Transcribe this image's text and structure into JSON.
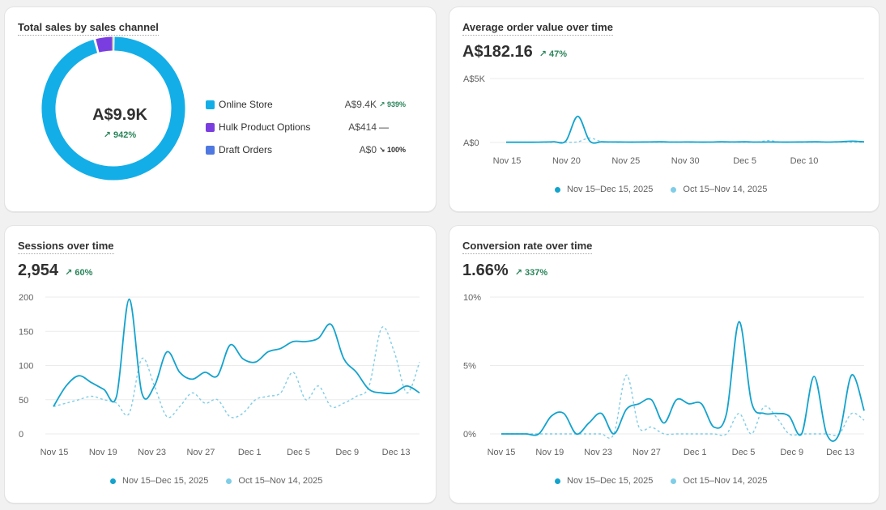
{
  "colors": {
    "primary": "#13a3cd",
    "previous": "#7fcde6",
    "positive": "#29845a",
    "grid": "#ebebeb",
    "axis": "#616161"
  },
  "legend": {
    "current": "Nov 15–Dec 15, 2025",
    "previous": "Oct 15–Nov 14, 2025"
  },
  "sales_by_channel": {
    "title": "Total sales by sales channel",
    "total": "A$9.9K",
    "total_change": "↗ 942%",
    "channels": [
      {
        "name": "Online Store",
        "value": "A$9.4K",
        "change": "↗ 939%",
        "color": "#13aee8",
        "amount": 9400
      },
      {
        "name": "Hulk Product Options",
        "value": "A$414",
        "change": "—",
        "color": "#7a3ee0",
        "amount": 414
      },
      {
        "name": "Draft Orders",
        "value": "A$0",
        "change": "↘ 100%",
        "color": "#4f78e0",
        "amount": 0
      }
    ]
  },
  "aov": {
    "title": "Average order value over time",
    "value": "A$182.16",
    "change": "↗ 47%"
  },
  "sessions": {
    "title": "Sessions over time",
    "value": "2,954",
    "change": "↗ 60%"
  },
  "conversion": {
    "title": "Conversion rate over time",
    "value": "1.66%",
    "change": "↗ 337%"
  },
  "chart_data": [
    {
      "type": "pie",
      "title": "Total sales by sales channel",
      "categories": [
        "Online Store",
        "Hulk Product Options",
        "Draft Orders"
      ],
      "values": [
        9400,
        414,
        0
      ]
    },
    {
      "type": "line",
      "title": "Average order value over time",
      "x_ticks": [
        "Nov 15",
        "Nov 20",
        "Nov 25",
        "Nov 30",
        "Dec 5",
        "Dec 10"
      ],
      "y_ticks": [
        "A$0",
        "A$5K"
      ],
      "ylim": [
        0,
        5000
      ],
      "grid": true,
      "series": [
        {
          "name": "Nov 15–Dec 15, 2025",
          "values": [
            20,
            20,
            20,
            30,
            60,
            120,
            2050,
            120,
            50,
            40,
            30,
            30,
            40,
            50,
            30,
            40,
            30,
            30,
            50,
            40,
            50,
            30,
            40,
            30,
            30,
            40,
            50,
            30,
            60,
            100,
            50
          ]
        },
        {
          "name": "Oct 15–Nov 14, 2025",
          "values": [
            10,
            10,
            10,
            10,
            10,
            10,
            50,
            350,
            60,
            20,
            20,
            40,
            20,
            20,
            30,
            20,
            20,
            20,
            30,
            20,
            20,
            30,
            150,
            20,
            30,
            20,
            30,
            20,
            30,
            20,
            20
          ]
        }
      ]
    },
    {
      "type": "line",
      "title": "Sessions over time",
      "x_ticks": [
        "Nov 15",
        "Nov 19",
        "Nov 23",
        "Nov 27",
        "Dec 1",
        "Dec 5",
        "Dec 9",
        "Dec 13"
      ],
      "y_ticks": [
        "0",
        "50",
        "100",
        "150",
        "200"
      ],
      "ylim": [
        0,
        200
      ],
      "grid": true,
      "series": [
        {
          "name": "Nov 15–Dec 15, 2025",
          "values": [
            40,
            70,
            85,
            75,
            65,
            55,
            197,
            60,
            70,
            120,
            90,
            80,
            90,
            85,
            130,
            110,
            105,
            120,
            125,
            135,
            135,
            140,
            160,
            110,
            90,
            65,
            60,
            60,
            70,
            60
          ]
        },
        {
          "name": "Oct 15–Nov 14, 2025",
          "values": [
            40,
            45,
            50,
            55,
            50,
            45,
            30,
            110,
            70,
            25,
            40,
            60,
            45,
            50,
            25,
            30,
            50,
            55,
            60,
            90,
            50,
            70,
            40,
            45,
            55,
            70,
            155,
            120,
            60,
            105
          ]
        }
      ]
    },
    {
      "type": "line",
      "title": "Conversion rate over time",
      "x_ticks": [
        "Nov 15",
        "Nov 19",
        "Nov 23",
        "Nov 27",
        "Dec 1",
        "Dec 5",
        "Dec 9",
        "Dec 13"
      ],
      "y_ticks": [
        "0%",
        "5%",
        "10%"
      ],
      "ylim": [
        0,
        10
      ],
      "grid": true,
      "series": [
        {
          "name": "Nov 15–Dec 15, 2025",
          "values": [
            0,
            0,
            0,
            0,
            1.3,
            1.5,
            0,
            0.8,
            1.5,
            0,
            1.8,
            2.2,
            2.5,
            0.8,
            2.5,
            2.2,
            2.2,
            0.5,
            1.5,
            8.2,
            2.3,
            1.5,
            1.5,
            1.3,
            0,
            4.2,
            0,
            0,
            4.3,
            1.7
          ]
        },
        {
          "name": "Oct 15–Nov 14, 2025",
          "values": [
            0,
            0,
            0,
            0,
            0,
            0,
            0,
            0,
            0,
            0,
            4.3,
            0.5,
            0.5,
            0,
            0,
            0,
            0,
            0,
            0,
            1.5,
            0,
            2,
            1.2,
            0,
            0,
            0,
            0,
            0,
            1.5,
            1
          ]
        }
      ]
    }
  ]
}
